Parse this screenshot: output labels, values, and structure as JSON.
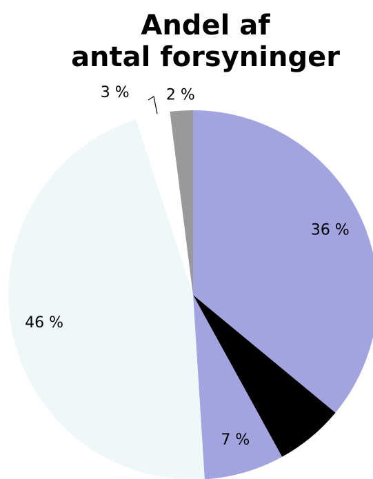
{
  "chart_data": {
    "type": "pie",
    "title": "Andel af\nantal forsyninger",
    "values": [
      36,
      6,
      7,
      46,
      3,
      2
    ],
    "value_labels": [
      "36 %",
      null,
      "7 %",
      "46 %",
      "3 %",
      "2 %"
    ],
    "colors": [
      "#a3a3e0",
      "#000000",
      "#a3a3e0",
      "#f0f7f9",
      "#ffffff",
      "#999999"
    ],
    "start_angle": 0,
    "direction": "clockwise"
  }
}
